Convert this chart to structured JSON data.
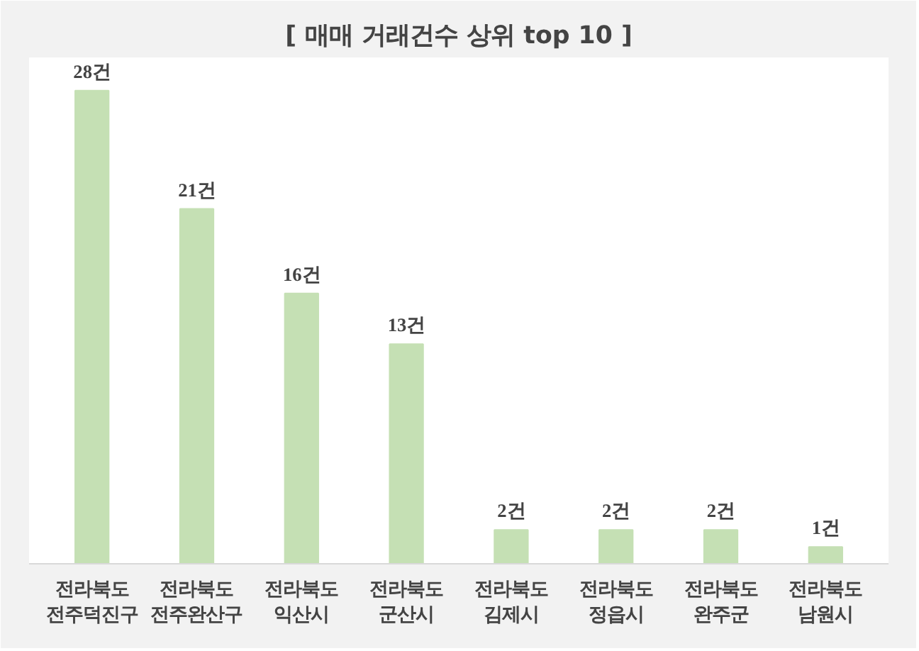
{
  "chart_data": {
    "type": "bar",
    "title": "[ 매매 거래건수 상위 top 10 ]",
    "categories": [
      "전라북도\n전주덕진구",
      "전라북도\n전주완산구",
      "전라북도\n익산시",
      "전라북도\n군산시",
      "전라북도\n김제시",
      "전라북도\n정읍시",
      "전라북도\n완주군",
      "전라북도\n남원시"
    ],
    "values": [
      28,
      21,
      16,
      13,
      2,
      2,
      2,
      1
    ],
    "value_labels": [
      "28건",
      "21건",
      "16건",
      "13건",
      "2건",
      "2건",
      "2건",
      "1건"
    ],
    "color": "#c5e0b4",
    "grid": false
  }
}
